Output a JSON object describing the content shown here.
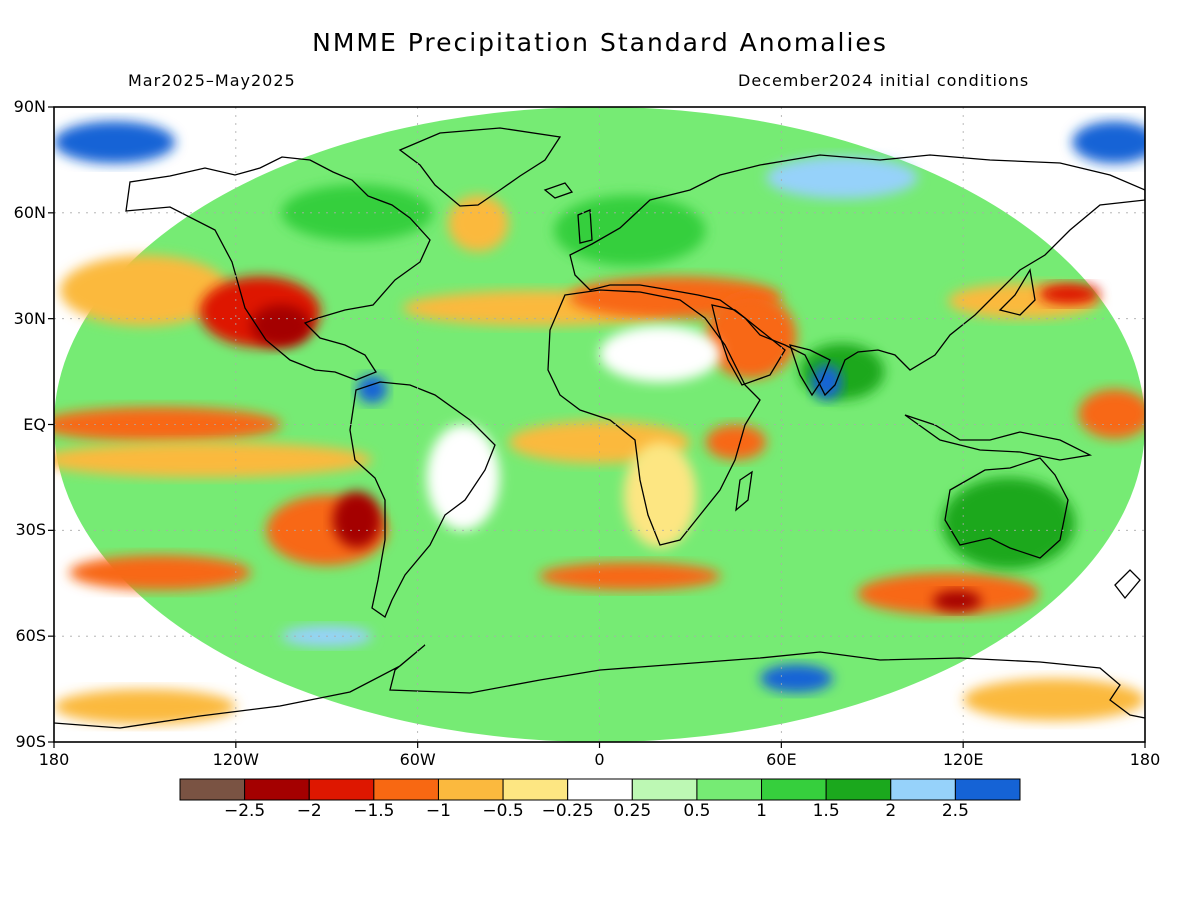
{
  "header": {
    "title": "NMME Precipitation Standard Anomalies",
    "period": "Mar2025–May2025",
    "conditions": "December2024 initial conditions"
  },
  "axes": {
    "lat_ticks": [
      {
        "label": "90N",
        "lat": 90
      },
      {
        "label": "60N",
        "lat": 60
      },
      {
        "label": "30N",
        "lat": 30
      },
      {
        "label": "EQ",
        "lat": 0
      },
      {
        "label": "30S",
        "lat": -30
      },
      {
        "label": "60S",
        "lat": -60
      },
      {
        "label": "90S",
        "lat": -90
      }
    ],
    "lon_ticks": [
      {
        "label": "180",
        "lon": -180
      },
      {
        "label": "120W",
        "lon": -120
      },
      {
        "label": "60W",
        "lon": -60
      },
      {
        "label": "0",
        "lon": 0
      },
      {
        "label": "60E",
        "lon": 60
      },
      {
        "label": "120E",
        "lon": 120
      },
      {
        "label": "180",
        "lon": 180
      }
    ]
  },
  "colorbar": {
    "colors": [
      "#7a5343",
      "#a40000",
      "#de1700",
      "#f86812",
      "#fbb93e",
      "#fde682",
      "#ffffff",
      "#bdf8b4",
      "#76eb74",
      "#36cf3d",
      "#1ba81d",
      "#96d2fa",
      "#1563d6"
    ],
    "labels": [
      "−2.5",
      "−2",
      "−1.5",
      "−1",
      "−0.5",
      "−0.25",
      "0.25",
      "0.5",
      "1",
      "1.5",
      "2",
      "2.5"
    ]
  },
  "anomaly_regions": [
    {
      "lon": 0,
      "lat": 0,
      "rx": 180,
      "ry": 90,
      "level": 0.8
    },
    {
      "lon": -160,
      "lat": 80,
      "rx": 20,
      "ry": 6,
      "level": 2.6
    },
    {
      "lon": 170,
      "lat": 80,
      "rx": 14,
      "ry": 6,
      "level": 2.6
    },
    {
      "lon": 80,
      "lat": 70,
      "rx": 25,
      "ry": 6,
      "level": 2.1
    },
    {
      "lon": -150,
      "lat": 38,
      "rx": 28,
      "ry": 10,
      "level": -0.7
    },
    {
      "lon": -112,
      "lat": 32,
      "rx": 20,
      "ry": 10,
      "level": -1.6
    },
    {
      "lon": -105,
      "lat": 28,
      "rx": 10,
      "ry": 6,
      "level": -2.1
    },
    {
      "lon": -40,
      "lat": 57,
      "rx": 10,
      "ry": 8,
      "level": -0.8
    },
    {
      "lon": -20,
      "lat": 33,
      "rx": 45,
      "ry": 5,
      "level": -0.8
    },
    {
      "lon": 25,
      "lat": 36,
      "rx": 35,
      "ry": 6,
      "level": -1.3
    },
    {
      "lon": 50,
      "lat": 25,
      "rx": 15,
      "ry": 12,
      "level": -1.4
    },
    {
      "lon": 20,
      "lat": 20,
      "rx": 20,
      "ry": 8,
      "level": 0.1
    },
    {
      "lon": -145,
      "lat": 0,
      "rx": 40,
      "ry": 5,
      "level": -1.4
    },
    {
      "lon": -130,
      "lat": -10,
      "rx": 55,
      "ry": 5,
      "level": -0.8
    },
    {
      "lon": -90,
      "lat": -30,
      "rx": 20,
      "ry": 10,
      "level": -1.5
    },
    {
      "lon": -80,
      "lat": -27,
      "rx": 8,
      "ry": 8,
      "level": -2.1
    },
    {
      "lon": -45,
      "lat": -15,
      "rx": 12,
      "ry": 15,
      "level": 0.1
    },
    {
      "lon": 0,
      "lat": -5,
      "rx": 30,
      "ry": 6,
      "level": -0.7
    },
    {
      "lon": 45,
      "lat": -5,
      "rx": 10,
      "ry": 5,
      "level": -1.3
    },
    {
      "lon": 20,
      "lat": -20,
      "rx": 12,
      "ry": 15,
      "level": -0.3
    },
    {
      "lon": -145,
      "lat": -42,
      "rx": 30,
      "ry": 5,
      "level": -1.2
    },
    {
      "lon": 10,
      "lat": -43,
      "rx": 30,
      "ry": 4,
      "level": -1.5
    },
    {
      "lon": 115,
      "lat": -48,
      "rx": 30,
      "ry": 6,
      "level": -1.1
    },
    {
      "lon": 118,
      "lat": -50,
      "rx": 8,
      "ry": 3,
      "level": -2.2
    },
    {
      "lon": 170,
      "lat": 3,
      "rx": 12,
      "ry": 7,
      "level": -1.3
    },
    {
      "lon": 140,
      "lat": 35,
      "rx": 25,
      "ry": 5,
      "level": -1.0
    },
    {
      "lon": 155,
      "lat": 37,
      "rx": 10,
      "ry": 3,
      "level": -1.6
    },
    {
      "lon": 80,
      "lat": 15,
      "rx": 14,
      "ry": 8,
      "level": 1.9
    },
    {
      "lon": 75,
      "lat": 12,
      "rx": 5,
      "ry": 5,
      "level": 2.6
    },
    {
      "lon": 135,
      "lat": -28,
      "rx": 22,
      "ry": 13,
      "level": 1.6
    },
    {
      "lon": -75,
      "lat": 10,
      "rx": 5,
      "ry": 4,
      "level": 2.6
    },
    {
      "lon": -150,
      "lat": -80,
      "rx": 30,
      "ry": 5,
      "level": -1.0
    },
    {
      "lon": 150,
      "lat": -78,
      "rx": 30,
      "ry": 6,
      "level": -0.8
    },
    {
      "lon": 65,
      "lat": -72,
      "rx": 12,
      "ry": 4,
      "level": 2.6
    },
    {
      "lon": -90,
      "lat": -60,
      "rx": 15,
      "ry": 3,
      "level": 2.3
    },
    {
      "lon": 10,
      "lat": 55,
      "rx": 25,
      "ry": 10,
      "level": 1.3
    },
    {
      "lon": -80,
      "lat": 60,
      "rx": 25,
      "ry": 8,
      "level": 1.4
    }
  ]
}
